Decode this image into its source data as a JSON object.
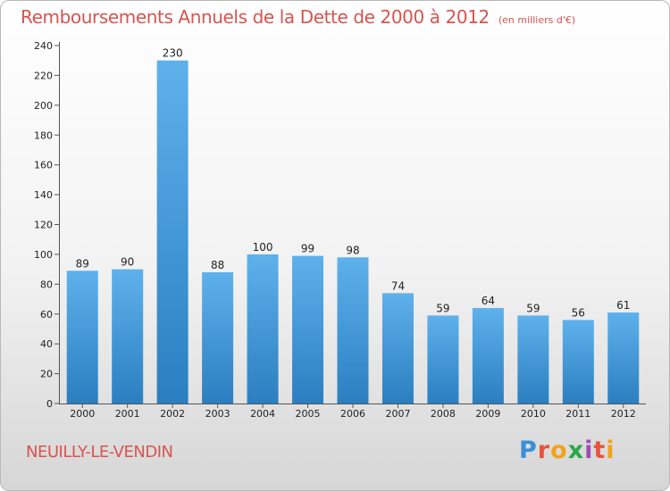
{
  "title": "Remboursements Annuels de la Dette de 2000 à 2012",
  "subtitle": "(en milliers d'€)",
  "city": "NEUILLY-LE-VENDIN",
  "logo": [
    "P",
    "r",
    "o",
    "x",
    "i",
    "t",
    "i"
  ],
  "logo_colors": [
    "#3a8fd6",
    "#e8543a",
    "#f2a21a",
    "#2aa84a",
    "#9b4fb4",
    "#e8543a",
    "#f2a21a"
  ],
  "colors": {
    "bar_light": "#5fb1ec",
    "bar_dark": "#2b7fc0",
    "text_accent": "#d9534f"
  },
  "chart_data": {
    "type": "bar",
    "categories": [
      "2000",
      "2001",
      "2002",
      "2003",
      "2004",
      "2005",
      "2006",
      "2007",
      "2008",
      "2009",
      "2010",
      "2011",
      "2012"
    ],
    "values": [
      89,
      90,
      230,
      88,
      100,
      99,
      98,
      74,
      59,
      64,
      59,
      56,
      61
    ],
    "ylim": [
      0,
      240
    ],
    "yticks": [
      0,
      20,
      40,
      60,
      80,
      100,
      120,
      140,
      160,
      180,
      200,
      220,
      240
    ],
    "grid": false,
    "data_labels": true
  }
}
